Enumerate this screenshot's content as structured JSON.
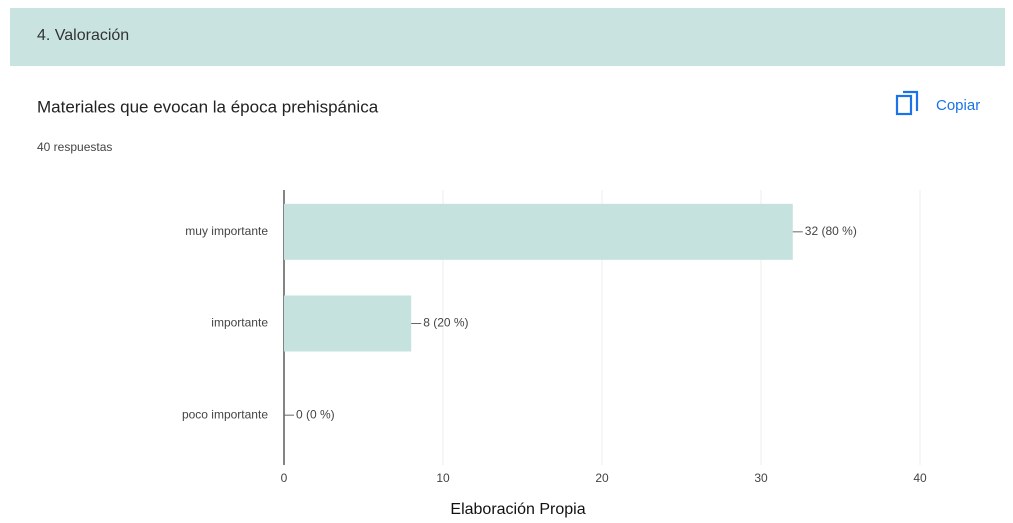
{
  "header": "4. Valoración",
  "button": "Copiar",
  "caption": "Elaboración Propia",
  "chart_data": {
    "type": "bar",
    "orientation": "horizontal",
    "title": "Materiales que evocan la época prehispánica",
    "subtitle": "40 respuestas",
    "categories": [
      "muy importante",
      "importante",
      "poco importante"
    ],
    "values": [
      32,
      8,
      0
    ],
    "value_labels": [
      "32 (80 %)",
      "8 (20 %)",
      "0 (0 %)"
    ],
    "color": "#c6e2df",
    "xlim": [
      0,
      40
    ],
    "xticks": [
      0,
      10,
      20,
      30,
      40
    ],
    "grid": true
  }
}
